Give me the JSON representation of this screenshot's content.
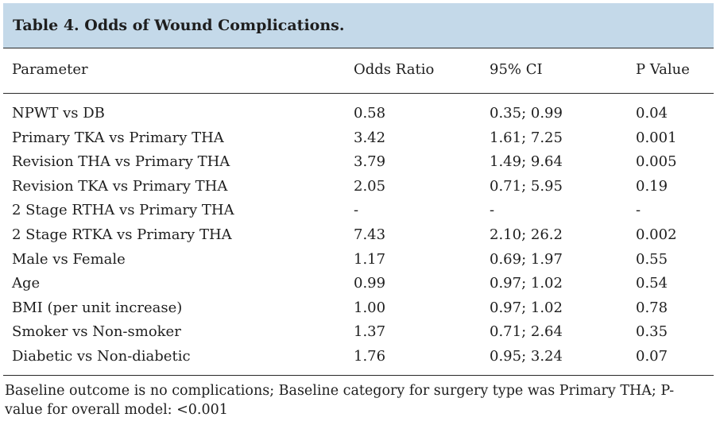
{
  "table": {
    "title": "Table 4. Odds of Wound Complications.",
    "headers": [
      "Parameter",
      "Odds Ratio",
      "95% CI",
      "P Value"
    ],
    "rows": [
      [
        "NPWT vs DB",
        "0.58",
        "0.35; 0.99",
        "0.04"
      ],
      [
        "Primary TKA vs Primary THA",
        "3.42",
        "1.61; 7.25",
        "0.001"
      ],
      [
        "Revision THA vs Primary THA",
        "3.79",
        "1.49; 9.64",
        "0.005"
      ],
      [
        "Revision TKA vs Primary THA",
        "2.05",
        "0.71; 5.95",
        "0.19"
      ],
      [
        "2 Stage RTHA vs Primary THA",
        "-",
        "-",
        "-"
      ],
      [
        "2 Stage RTKA vs Primary THA",
        "7.43",
        "2.10; 26.2",
        "0.002"
      ],
      [
        "Male vs Female",
        "1.17",
        "0.69; 1.97",
        "0.55"
      ],
      [
        "Age",
        "0.99",
        "0.97; 1.02",
        "0.54"
      ],
      [
        "BMI (per unit increase)",
        "1.00",
        "0.97; 1.02",
        "0.78"
      ],
      [
        "Smoker vs Non-smoker",
        "1.37",
        "0.71; 2.64",
        "0.35"
      ],
      [
        "Diabetic vs Non-diabetic",
        "1.76",
        "0.95; 3.24",
        "0.07"
      ]
    ],
    "footnote": "Baseline outcome is no complications; Baseline category for surgery type was Primary THA; P-value for overall model: <0.001"
  },
  "colors": {
    "title_background": "#c4d9e9",
    "rule_color": "#2a2a2a",
    "text_color": "#1e1e1e"
  }
}
